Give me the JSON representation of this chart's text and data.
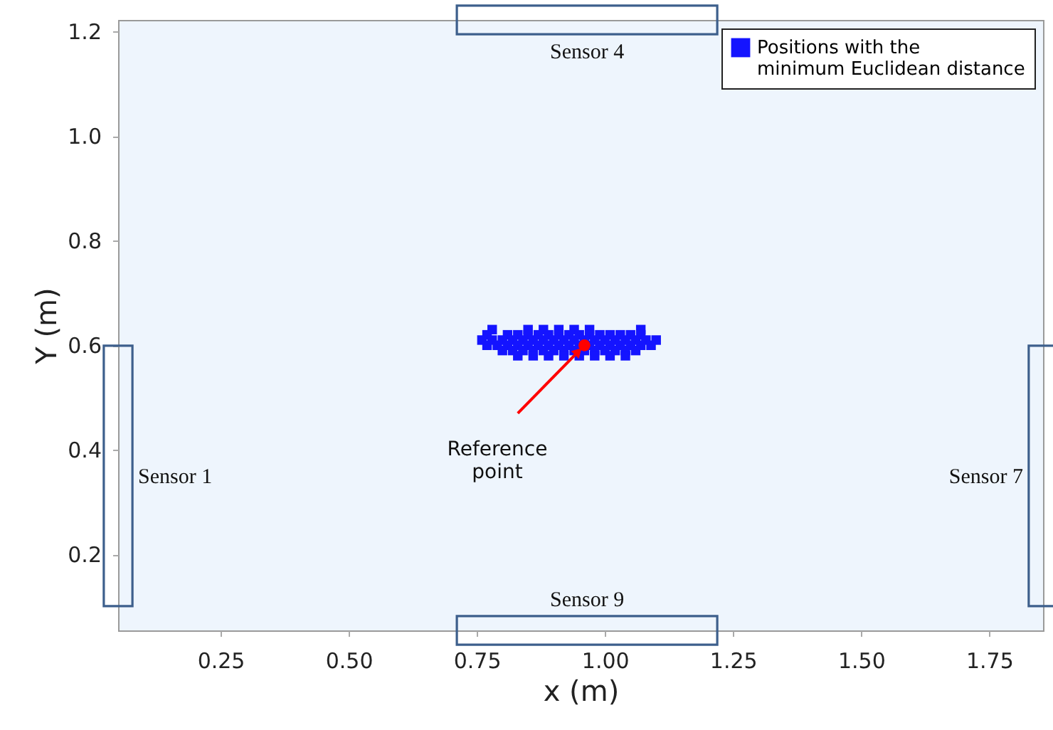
{
  "chart_data": {
    "type": "scatter",
    "xlabel": "x (m)",
    "ylabel": "Y (m)",
    "xlim": [
      0.05,
      1.855
    ],
    "ylim": [
      0.055,
      1.222
    ],
    "xticks": [
      0.25,
      {
        "value": 0.5,
        "label": "0.50"
      },
      0.75,
      {
        "value": 1.0,
        "label": "1.00"
      },
      1.25,
      {
        "value": 1.5,
        "label": "1.50"
      },
      1.75
    ],
    "yticks": [
      0.2,
      0.4,
      0.6,
      0.8,
      {
        "value": 1.0,
        "label": "1.0"
      },
      1.2
    ],
    "grid": false,
    "legend": "top right",
    "marker": "square",
    "series": [
      {
        "name": "Positions with the minimum Euclidean distance",
        "color": "#1414ff",
        "x": [
          0.78,
          0.85,
          0.88,
          0.91,
          0.94,
          0.97,
          1.07,
          0.77,
          0.81,
          0.83,
          0.85,
          0.87,
          0.89,
          0.91,
          0.93,
          0.95,
          0.97,
          0.99,
          1.01,
          1.03,
          1.05,
          1.07,
          0.76,
          0.78,
          0.8,
          0.82,
          0.84,
          0.86,
          0.88,
          0.9,
          0.92,
          0.94,
          0.96,
          0.98,
          1.0,
          1.02,
          1.04,
          1.06,
          1.08,
          1.1,
          0.77,
          0.79,
          0.81,
          0.83,
          0.85,
          0.87,
          0.89,
          0.91,
          0.93,
          0.95,
          0.97,
          0.99,
          1.01,
          1.03,
          1.05,
          1.07,
          1.09,
          0.8,
          0.82,
          0.84,
          0.86,
          0.88,
          0.9,
          0.92,
          0.94,
          0.96,
          0.98,
          1.0,
          1.02,
          1.04,
          1.06,
          0.83,
          0.86,
          0.89,
          0.92,
          0.95,
          0.98,
          1.01,
          1.04
        ],
        "values": [
          0.63,
          0.63,
          0.63,
          0.63,
          0.63,
          0.63,
          0.63,
          0.62,
          0.62,
          0.62,
          0.62,
          0.62,
          0.62,
          0.62,
          0.62,
          0.62,
          0.62,
          0.62,
          0.62,
          0.62,
          0.62,
          0.62,
          0.61,
          0.61,
          0.61,
          0.61,
          0.61,
          0.61,
          0.61,
          0.61,
          0.61,
          0.61,
          0.61,
          0.61,
          0.61,
          0.61,
          0.61,
          0.61,
          0.61,
          0.61,
          0.6,
          0.6,
          0.6,
          0.6,
          0.6,
          0.6,
          0.6,
          0.6,
          0.6,
          0.6,
          0.6,
          0.6,
          0.6,
          0.6,
          0.6,
          0.6,
          0.6,
          0.59,
          0.59,
          0.59,
          0.59,
          0.59,
          0.59,
          0.59,
          0.59,
          0.59,
          0.59,
          0.59,
          0.59,
          0.59,
          0.59,
          0.58,
          0.58,
          0.58,
          0.58,
          0.58,
          0.58,
          0.58,
          0.58
        ]
      },
      {
        "name": "Reference point",
        "color": "#ff0000",
        "marker": "circle",
        "x": [
          0.96
        ],
        "values": [
          0.6
        ]
      }
    ],
    "annotations": [
      "Sensor 1",
      "Sensor 4",
      "Sensor 7",
      "Sensor 9"
    ]
  }
}
